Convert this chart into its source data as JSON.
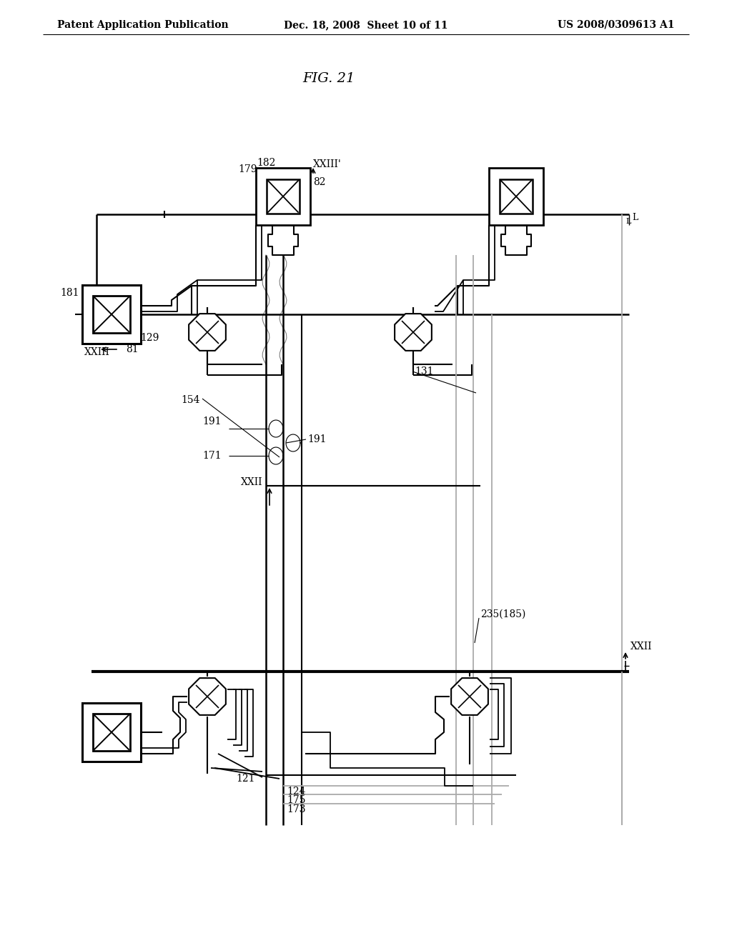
{
  "header_left": "Patent Application Publication",
  "header_mid": "Dec. 18, 2008  Sheet 10 of 11",
  "header_right": "US 2008/0309613 A1",
  "fig_title": "FIG. 21",
  "bg_color": "#ffffff",
  "lc": "#000000",
  "gc": "#aaaaaa"
}
